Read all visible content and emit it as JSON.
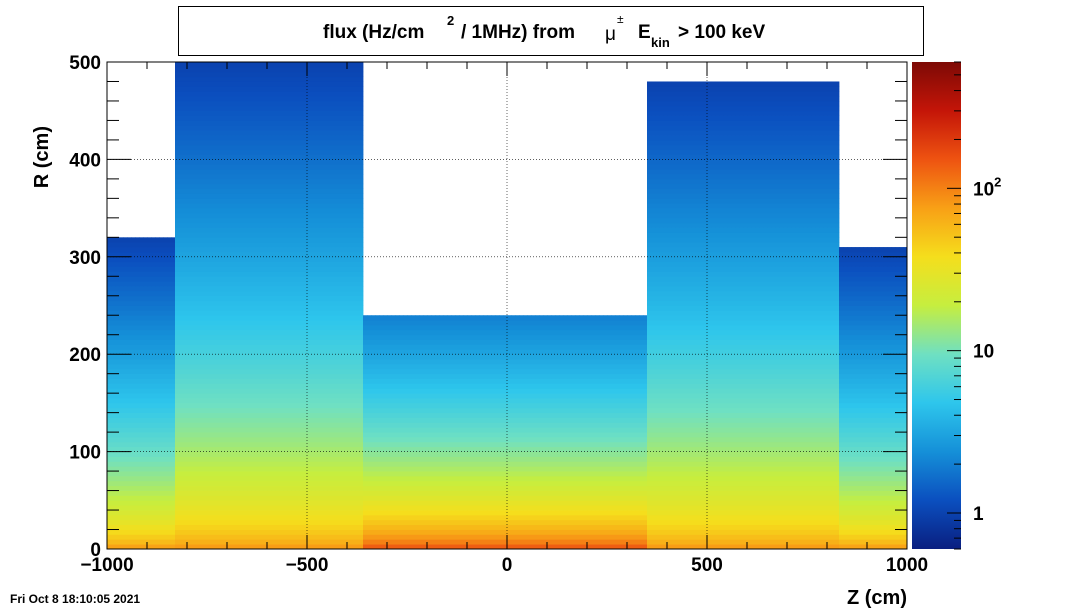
{
  "title": {
    "prefix": "flux (Hz/cm",
    "sup_2": "2",
    "middle": "/ 1MHz) from",
    "mu": "μ",
    "pm": "±",
    "e": "E",
    "kin": "kin",
    "suffix": "> 100 keV"
  },
  "timestamp": "Fri Oct  8 18:10:05 2021",
  "chart_data": {
    "type": "heatmap",
    "title": "flux (Hz/cm2 / 1MHz) from μ± Ekin > 100 keV",
    "xlabel": "Z (cm)",
    "ylabel": "R (cm)",
    "xlim": [
      -1000,
      1000
    ],
    "ylim": [
      0,
      500
    ],
    "x_ticks": [
      "−1000",
      "−500",
      "0",
      "500",
      "1000"
    ],
    "y_ticks": [
      "0",
      "100",
      "200",
      "300",
      "400",
      "500"
    ],
    "grid": true,
    "colorbar": {
      "scale": "log",
      "range": [
        0.6,
        600
      ],
      "tick_labels": [
        {
          "value": 1,
          "base": "1",
          "exp": ""
        },
        {
          "value": 10,
          "base": "10",
          "exp": ""
        },
        {
          "value": 100,
          "base": "10",
          "exp": "2"
        }
      ],
      "palette": [
        "#0a1f80",
        "#0b4fbf",
        "#1590d8",
        "#2ec6ec",
        "#6fe0c2",
        "#c6ee3f",
        "#f5de1c",
        "#f8a016",
        "#ee5311",
        "#c41508",
        "#7d0a05"
      ]
    },
    "regions": [
      {
        "z": [
          -1000,
          -830
        ],
        "r_max": 320,
        "flux_near_axis": 100,
        "flux_edge": 1
      },
      {
        "z": [
          -830,
          -360
        ],
        "r_max": 500,
        "flux_near_axis": 100,
        "flux_edge": 1
      },
      {
        "z": [
          -360,
          350
        ],
        "r_max": 240,
        "flux_near_axis": 200,
        "flux_edge": 2
      },
      {
        "z": [
          350,
          830
        ],
        "r_max": 480,
        "flux_near_axis": 100,
        "flux_edge": 1
      },
      {
        "z": [
          830,
          1000
        ],
        "r_max": 310,
        "flux_near_axis": 100,
        "flux_edge": 1
      }
    ]
  }
}
